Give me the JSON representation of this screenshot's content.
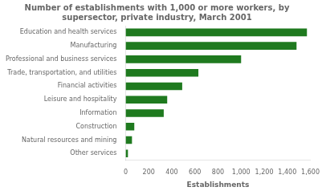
{
  "chart_data": {
    "type": "bar",
    "orientation": "horizontal",
    "title": "Number of establishments with 1,000 or more workers, by\nsupersector, private industry, March 2001",
    "categories": [
      "Other services",
      "Natural resources and mining",
      "Construction",
      "Information",
      "Leisure and hospitality",
      "Financial activities",
      "Trade, transportation, and utilities",
      "Professional and business services",
      "Manufacturing",
      "Education and health services"
    ],
    "values": [
      20,
      55,
      75,
      330,
      360,
      490,
      630,
      1000,
      1480,
      1570
    ],
    "color": "#1f7a1f",
    "xlabel": "Establishments",
    "xlim": [
      0,
      1600
    ],
    "xticks": [
      0,
      200,
      400,
      600,
      800,
      {
        "value": 1000,
        "label": "1,000"
      },
      {
        "value": 1200,
        "label": "1,200"
      },
      {
        "value": 1400,
        "label": "1,400"
      },
      {
        "value": 1600,
        "label": "1,600"
      }
    ],
    "grid": false
  }
}
